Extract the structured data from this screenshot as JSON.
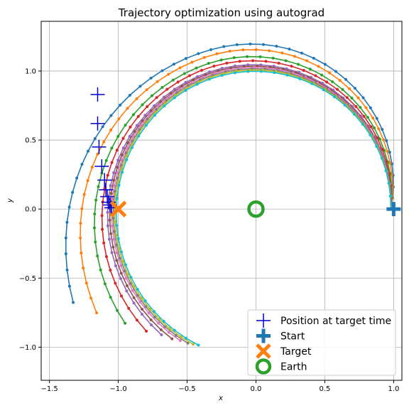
{
  "chart_data": {
    "type": "line",
    "title": "Trajectory optimization using autograd",
    "xlabel": "x",
    "ylabel": "y",
    "xlim": [
      -1.56,
      1.06
    ],
    "ylim": [
      -1.24,
      1.36
    ],
    "xticks": [
      -1.5,
      -1.0,
      -0.5,
      0.0,
      0.5,
      1.0
    ],
    "yticks": [
      -1.0,
      -0.5,
      0.0,
      0.5,
      1.0
    ],
    "xtick_labels": [
      "−1.5",
      "−1.0",
      "−0.5",
      "0.0",
      "0.5",
      "1.0"
    ],
    "ytick_labels": [
      "−1.0",
      "−0.5",
      "0.0",
      "0.5",
      "1.0"
    ],
    "grid": true,
    "legend_position": "bottom-right",
    "legend": [
      {
        "label": "Position at target time",
        "marker": "plus-thin",
        "color": "#0000cc"
      },
      {
        "label": "Start",
        "marker": "plus-thick",
        "color": "#1f77b4"
      },
      {
        "label": "Target",
        "marker": "x-thick",
        "color": "#ff7f0e"
      },
      {
        "label": "Earth",
        "marker": "circle-open",
        "color": "#2ca02c"
      }
    ],
    "start": {
      "x": 1.0,
      "y": 0.0,
      "color": "#1f77b4"
    },
    "target": {
      "x": -1.0,
      "y": 0.0,
      "color": "#ff7f0e"
    },
    "earth": {
      "x": 0.0,
      "y": 0.0,
      "color": "#2ca02c"
    },
    "target_time_positions": {
      "color": "#0000cc",
      "points": [
        {
          "x": -1.15,
          "y": 0.83
        },
        {
          "x": -1.15,
          "y": 0.62
        },
        {
          "x": -1.14,
          "y": 0.45
        },
        {
          "x": -1.12,
          "y": 0.31
        },
        {
          "x": -1.1,
          "y": 0.21
        },
        {
          "x": -1.09,
          "y": 0.14
        },
        {
          "x": -1.08,
          "y": 0.09
        },
        {
          "x": -1.07,
          "y": 0.05
        },
        {
          "x": -1.06,
          "y": 0.03
        },
        {
          "x": -1.05,
          "y": 0.01
        }
      ]
    },
    "trajectory_family": {
      "start_angle_deg": 0,
      "n_points": 46,
      "series": [
        {
          "color": "#1f77b4",
          "end_angle_deg": 207,
          "r0": 0.98,
          "r_mid": 1.2,
          "r_end": 1.49
        },
        {
          "color": "#ff7f0e",
          "end_angle_deg": 213,
          "r0": 0.98,
          "r_mid": 1.16,
          "r_end": 1.38
        },
        {
          "color": "#2ca02c",
          "end_angle_deg": 221,
          "r0": 0.98,
          "r_mid": 1.11,
          "r_end": 1.26
        },
        {
          "color": "#d62728",
          "end_angle_deg": 228,
          "r0": 0.98,
          "r_mid": 1.08,
          "r_end": 1.19
        },
        {
          "color": "#9467bd",
          "end_angle_deg": 233,
          "r0": 0.98,
          "r_mid": 1.05,
          "r_end": 1.14
        },
        {
          "color": "#8c564b",
          "end_angle_deg": 237,
          "r0": 0.98,
          "r_mid": 1.04,
          "r_end": 1.12
        },
        {
          "color": "#e377c2",
          "end_angle_deg": 240,
          "r0": 0.98,
          "r_mid": 1.03,
          "r_end": 1.1
        },
        {
          "color": "#7f7f7f",
          "end_angle_deg": 243,
          "r0": 0.98,
          "r_mid": 1.02,
          "r_end": 1.09
        },
        {
          "color": "#bcbd22",
          "end_angle_deg": 245,
          "r0": 0.98,
          "r_mid": 1.01,
          "r_end": 1.08
        },
        {
          "color": "#17becf",
          "end_angle_deg": 247,
          "r0": 0.98,
          "r_mid": 1.0,
          "r_end": 1.07
        }
      ]
    }
  }
}
